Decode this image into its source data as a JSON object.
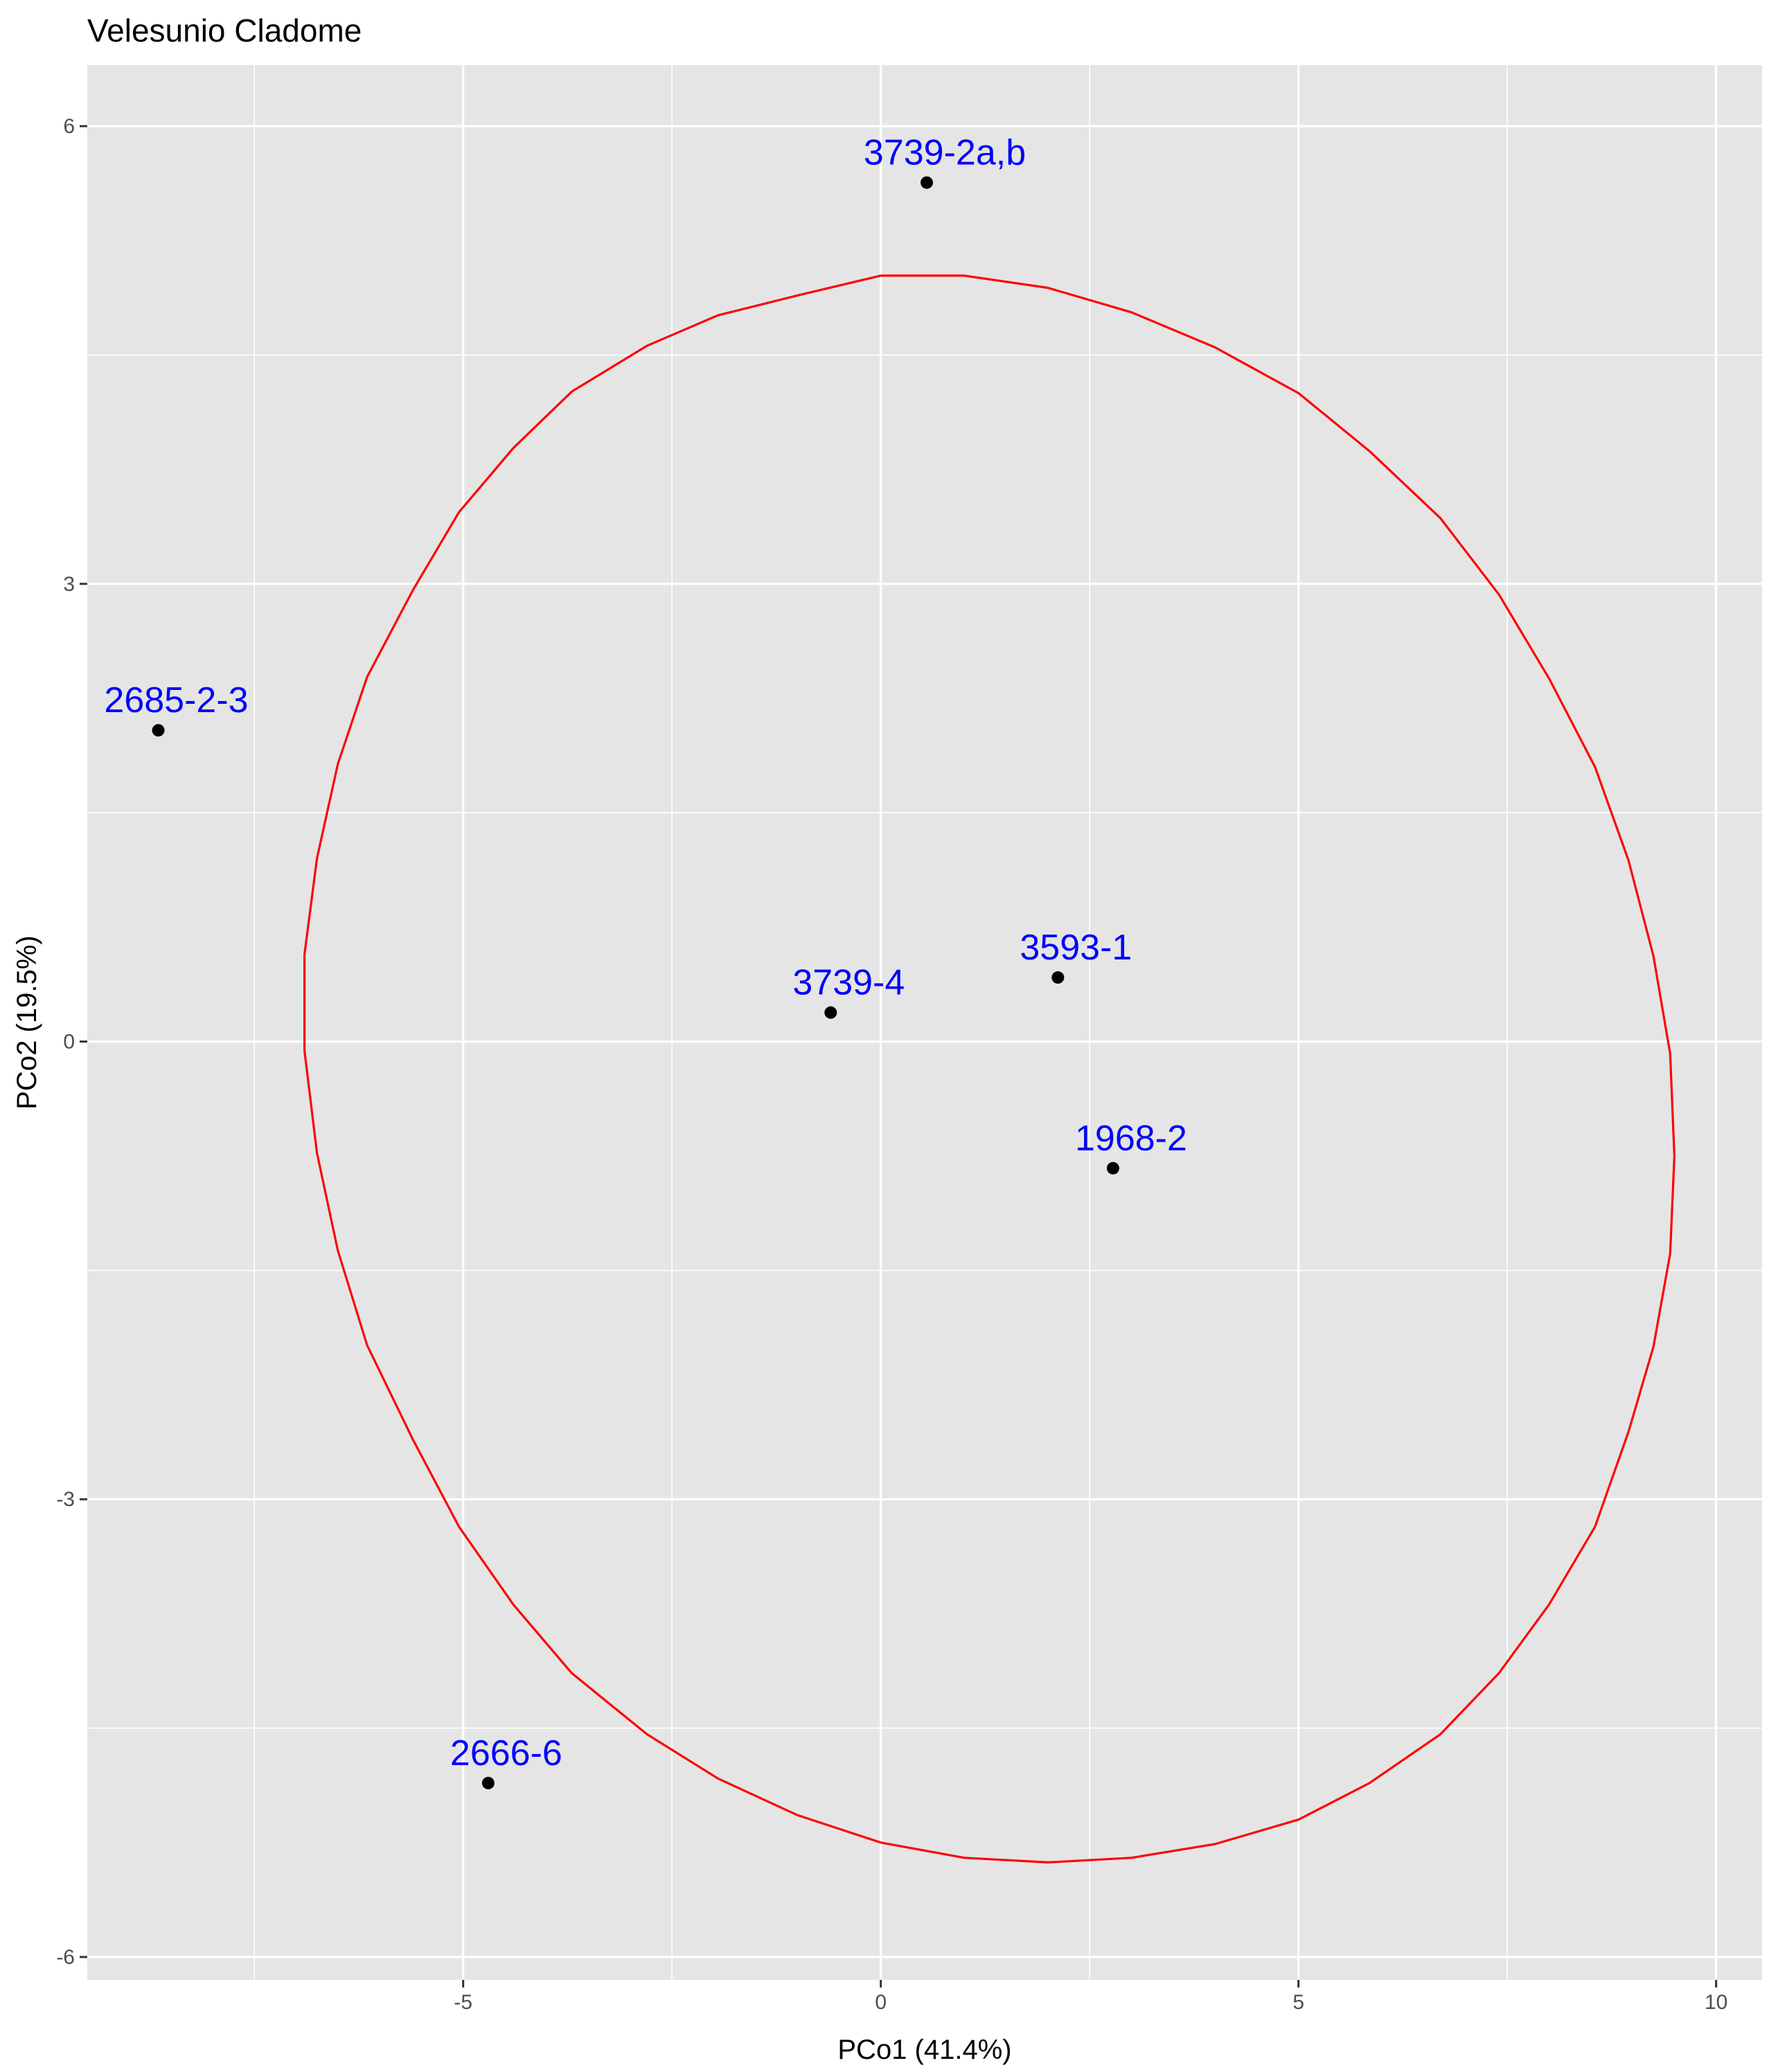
{
  "chart_data": {
    "type": "scatter",
    "title": "Velesunio Cladome",
    "xlabel": "PCo1 (41.4%)",
    "ylabel": "PCo2 (19.5%)",
    "xlim": [
      -9.5,
      10.55
    ],
    "ylim": [
      -6.15,
      6.4
    ],
    "x_ticks": [
      -5,
      0,
      5,
      10
    ],
    "x_tick_labels": [
      "-5",
      "0",
      "5",
      "10"
    ],
    "y_ticks": [
      -6,
      -3,
      0,
      3,
      6
    ],
    "y_tick_labels": [
      "-6",
      "-3",
      "0",
      "3",
      "6"
    ],
    "x_minor": [
      -7.5,
      -2.5,
      2.5,
      7.5
    ],
    "y_minor": [
      -4.5,
      -1.5,
      1.5,
      4.5
    ],
    "grid": true,
    "legend": "none",
    "colors": {
      "panel": "#e5e5e5",
      "grid": "#ffffff",
      "point": "#000000",
      "label": "#0000ff",
      "ellipse": "#ff0000"
    },
    "points": [
      {
        "label": "3739-2a,b",
        "x": 0.55,
        "y": 5.63
      },
      {
        "label": "2685-2-3",
        "x": -8.65,
        "y": 2.04
      },
      {
        "label": "3593-1",
        "x": 2.12,
        "y": 0.42
      },
      {
        "label": "3739-4",
        "x": -0.6,
        "y": 0.19
      },
      {
        "label": "1968-2",
        "x": 2.78,
        "y": -0.83
      },
      {
        "label": "2666-6",
        "x": -4.7,
        "y": -4.86
      }
    ],
    "ellipse": {
      "x": [
        0,
        1.0,
        2.0,
        3.0,
        4.0,
        5.0,
        5.85,
        6.7,
        7.4,
        8.0,
        8.55,
        8.95,
        9.25,
        9.45,
        9.5,
        9.45,
        9.25,
        8.95,
        8.55,
        8.0,
        7.4,
        6.7,
        5.85,
        5.0,
        4.0,
        3.0,
        2.0,
        1.0,
        0,
        -1.0,
        -1.95,
        -2.8,
        -3.7,
        -4.4,
        -5.05,
        -5.6,
        -6.15,
        -6.5,
        -6.75,
        -6.9,
        -6.9,
        -6.75,
        -6.5,
        -6.15,
        -5.6,
        -5.05,
        -4.4,
        -3.7,
        -2.8,
        -1.95,
        -1.0,
        0
      ],
      "y": [
        5.02,
        5.02,
        4.94,
        4.78,
        4.55,
        4.25,
        3.87,
        3.43,
        2.93,
        2.38,
        1.8,
        1.19,
        0.56,
        -0.08,
        -0.75,
        -1.39,
        -2.0,
        -2.56,
        -3.18,
        -3.69,
        -4.14,
        -4.54,
        -4.86,
        -5.1,
        -5.26,
        -5.35,
        -5.38,
        -5.35,
        -5.25,
        -5.07,
        -4.83,
        -4.54,
        -4.14,
        -3.69,
        -3.18,
        -2.61,
        -1.99,
        -1.37,
        -0.73,
        -0.06,
        0.57,
        1.2,
        1.82,
        2.39,
        2.96,
        3.47,
        3.89,
        4.26,
        4.56,
        4.76,
        4.89,
        5.02
      ]
    }
  }
}
